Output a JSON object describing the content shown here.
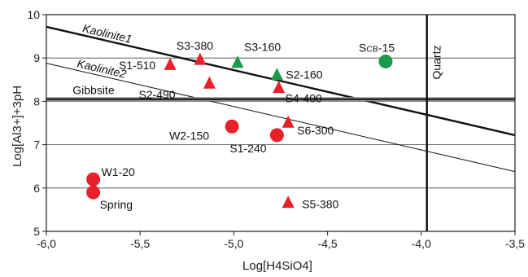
{
  "chart_data": {
    "type": "scatter",
    "xlabel": "Log[H4SiO4]",
    "ylabel": "Log[Al3+]+3pH",
    "xlim": [
      -6.0,
      -3.5
    ],
    "ylim": [
      5,
      10
    ],
    "xticks": [
      -6.0,
      -5.5,
      -5.0,
      -4.5,
      -4.0,
      -3.5
    ],
    "xtick_labels": [
      "-6,0",
      "-5,5",
      "-5,0",
      "-4,5",
      "-4,0",
      "-3,5"
    ],
    "yticks": [
      5,
      6,
      7,
      8,
      9,
      10
    ],
    "ytick_labels": [
      "5",
      "6",
      "7",
      "8",
      "9",
      "10"
    ],
    "grid": "horizontal",
    "colors": {
      "red": "#e8202a",
      "green": "#1a9a4a"
    },
    "boundaries": [
      {
        "label": "Kaolinite1",
        "x": [
          -6.0,
          -3.5
        ],
        "y": [
          9.72,
          7.22
        ],
        "weight": "bold"
      },
      {
        "label": "Kaolinite2",
        "x": [
          -6.0,
          -3.5
        ],
        "y": [
          8.88,
          6.38
        ],
        "weight": "thin"
      },
      {
        "label": "Gibbsite",
        "x": [
          -6.0,
          -3.5
        ],
        "y": [
          8.05,
          8.05
        ],
        "weight": "bold"
      },
      {
        "label": "Quartz",
        "x": [
          -3.97,
          -3.97
        ],
        "y": [
          5.0,
          10.0
        ],
        "weight": "bold"
      }
    ],
    "series": [
      {
        "marker": "triangle",
        "color": "red",
        "points": [
          {
            "label": "S1-510",
            "x": -5.34,
            "y": 8.83
          },
          {
            "label": "S3-380",
            "x": -5.18,
            "y": 8.95
          },
          {
            "label": "S2-490",
            "x": -5.13,
            "y": 8.4
          },
          {
            "label": "S4-400",
            "x": -4.76,
            "y": 8.3
          },
          {
            "label": "S6-300",
            "x": -4.71,
            "y": 7.5
          },
          {
            "label": "S5-380",
            "x": -4.71,
            "y": 5.65
          }
        ]
      },
      {
        "marker": "triangle",
        "color": "green",
        "points": [
          {
            "label": "S3-160",
            "x": -4.98,
            "y": 8.88
          },
          {
            "label": "S2-160",
            "x": -4.77,
            "y": 8.6
          }
        ]
      },
      {
        "marker": "circle",
        "color": "red",
        "points": [
          {
            "label": "W2-150",
            "x": -5.01,
            "y": 7.42
          },
          {
            "label": "S1-240",
            "x": -4.77,
            "y": 7.22
          },
          {
            "label": "W1-20",
            "x": -5.75,
            "y": 6.2
          },
          {
            "label": "Spring",
            "x": -5.75,
            "y": 5.9
          }
        ]
      },
      {
        "marker": "circle",
        "color": "green",
        "points": [
          {
            "label": "SCB-15",
            "x": -4.19,
            "y": 8.92
          }
        ]
      }
    ]
  }
}
